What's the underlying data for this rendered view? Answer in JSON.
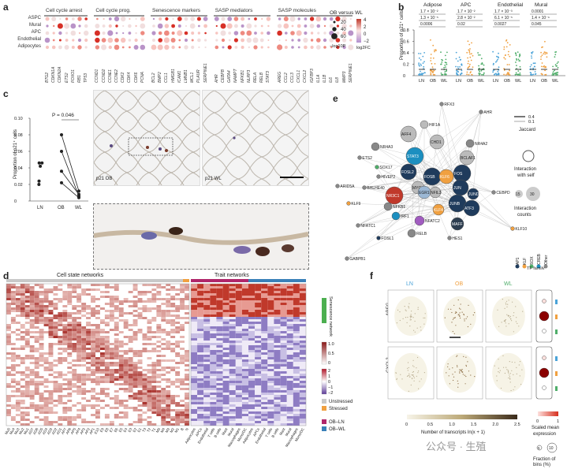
{
  "panels": {
    "a": "a",
    "b": "b",
    "c": "c",
    "d": "d",
    "e": "e",
    "f": "f"
  },
  "panel_a": {
    "groups": [
      "Cell cycle arrest",
      "Cell cycle prog.",
      "Senescence markers",
      "SASP mediators",
      "SASP molecules"
    ],
    "rows": [
      "ASPC",
      "Mural",
      "APC",
      "Endothelial",
      "Adipocytes"
    ],
    "genes": [
      [
        "BTG2",
        "CDKN1A",
        "CDKN2A",
        "ETS2",
        "FOXO1",
        "RB1",
        "TP53"
      ],
      [
        "CCND1",
        "CCND2",
        "CCNE1",
        "CCNE2",
        "CDK2",
        "CDK4",
        "CDK6",
        "PCNA"
      ],
      [
        "BCL2",
        "BMP2",
        "CCL1",
        "HMGB1",
        "ICAM1",
        "LMNB1",
        "MCL1",
        "PLAUR",
        "SERPINE1"
      ],
      [
        "AHR",
        "CEBPB",
        "GATA4",
        "NAMPT",
        "NFKB1",
        "NLRP3",
        "RELA",
        "RELB",
        "STAT3"
      ],
      [
        "AREG",
        "CCL2",
        "CCL3",
        "CXCL1",
        "CXCL2",
        "IGFBP3",
        "IL1A",
        "IL1B",
        "IL6",
        "IL8",
        "MMP3",
        "SERPINE1"
      ]
    ],
    "legend": {
      "title": "OB versus WL",
      "size_vals": [
        "20",
        "40",
        "60"
      ],
      "size_caption": "−log10P",
      "color_ticks": [
        "4",
        "2",
        "0",
        "−2"
      ],
      "color_caption": "log2FC"
    },
    "colors": {
      "up": "#d73027",
      "down": "#7b3294",
      "neutral": "#f4dcdc"
    }
  },
  "panel_b": {
    "groups": [
      "Adipose",
      "APC",
      "Endothelial",
      "Mural"
    ],
    "pvals": [
      [
        "1.7 × 10⁻²",
        "1.3 × 10⁻⁵",
        "0.0006"
      ],
      [
        "1.7 × 10⁻²",
        "2.8 × 10⁻²",
        "0.02"
      ],
      [
        "1.7 × 10⁻³",
        "6.1 × 10⁻⁵",
        "0.0027"
      ],
      [
        "0.0001",
        "1.4 × 10⁻⁶",
        "0.045"
      ]
    ],
    "ylabel": "Proportion of p21⁺ cells",
    "yticks": [
      "0.8",
      "0.6",
      "0.4",
      "0.2",
      "0"
    ],
    "xcats": [
      "LN",
      "OB",
      "WL"
    ],
    "colors": {
      "LN": "#4aa3d8",
      "OB": "#f0a040",
      "WL": "#4fae6a"
    }
  },
  "panel_c": {
    "ylabel": "Proportion of p21⁺ cells",
    "yticks": [
      "0.10",
      "0.08",
      "0.06",
      "0.04",
      "0.02",
      "0"
    ],
    "xcats": [
      "LN",
      "OB",
      "WL"
    ],
    "pvalue": "P = 0.046",
    "img_label_ob": "p21 OB",
    "img_label_wl": "p21 WL"
  },
  "panel_d": {
    "title_left": "Cell state networks",
    "title_right": "Trait networks",
    "side_label": "Senescence network",
    "scale_ticks_top": [
      "1.0",
      "0.5",
      "0"
    ],
    "scale_ticks_bottom": [
      "2",
      "1",
      "0",
      "−1",
      "−2"
    ],
    "legend": [
      {
        "label": "Unstressed",
        "color": "#c8c8c8"
      },
      {
        "label": "Stressed",
        "color": "#f0a040"
      },
      {
        "label": "OB–LN",
        "color": "#b0266a"
      },
      {
        "label": "OB–WL",
        "color": "#3a80b8"
      }
    ],
    "left_xlabels": [
      "Mu5",
      "Mu4",
      "Mu3",
      "Mu2",
      "Mu1",
      "AD7",
      "AD6",
      "AD5",
      "AD4",
      "AD3",
      "AD2",
      "AD1",
      "AP7",
      "AP6",
      "AP5",
      "AP4",
      "AP3",
      "AP2",
      "AP1",
      "E10",
      "E9",
      "E8",
      "E7",
      "E6",
      "E5",
      "E4",
      "E3",
      "E2",
      "E1",
      "T3",
      "T2",
      "T1",
      "M5",
      "M4",
      "M3",
      "M2",
      "M1",
      "B",
      "N"
    ],
    "right_xlabels": [
      "Adipocytes",
      "APCs",
      "Endothelial",
      "T cells",
      "B cells",
      "Mast",
      "Mural",
      "Macrophages",
      "Mono/DC",
      "Adipocytes",
      "APCs",
      "Endothelial",
      "T cells",
      "B cells",
      "Mast",
      "Mural",
      "Macrophages",
      "Mono/DC"
    ]
  },
  "panel_e": {
    "nodes": [
      "RFX3",
      "AHR",
      "HIF1A",
      "AFF4",
      "NR4A3",
      "NR4A2",
      "CHD1",
      "STAT3",
      "BCLAF1",
      "ETS2",
      "SOX17",
      "FOS",
      "HIVEP2",
      "FOSL2",
      "FOSB",
      "KLF6",
      "CEBPD",
      "ARID5A",
      "BHLHE40",
      "JUN",
      "JUND",
      "MYC",
      "EGR1",
      "NFIL3",
      "KLF9",
      "NR3C1",
      "NFKB1",
      "JUNB",
      "ATF3",
      "KLF4",
      "IRF1",
      "NFATC2",
      "MAFF",
      "NFATC1",
      "RELB",
      "HES1",
      "KLF10",
      "FOSL1",
      "GABPB1"
    ],
    "legend": {
      "jaccard_vals": [
        "0.4",
        "0.1"
      ],
      "jaccard_title": "Jaccard",
      "self_title": "Interaction with self",
      "count_vals": [
        "15",
        "30"
      ],
      "count_title": "Interaction counts",
      "tf_family_title": "TF family",
      "families": [
        "AP1",
        "KLF",
        "SOX",
        "CREB",
        "Other"
      ]
    }
  },
  "panel_f": {
    "cols": [
      "LN",
      "OB",
      "WL"
    ],
    "genes": [
      "AREG",
      "CXCL2"
    ],
    "colorbar_ticks": [
      "0",
      "0.5",
      "1.0",
      "1.5",
      "2.0",
      "2.5"
    ],
    "colorbar_caption": "Number of transcripts ln(x + 1)",
    "scaled_title": "Scaled mean expression",
    "scaled_ticks": [
      "0",
      "1"
    ],
    "fraction_title": "Fraction of bins (%)",
    "fraction_vals": [
      "5",
      "10"
    ]
  },
  "watermark": "公众号 · 生殖"
}
